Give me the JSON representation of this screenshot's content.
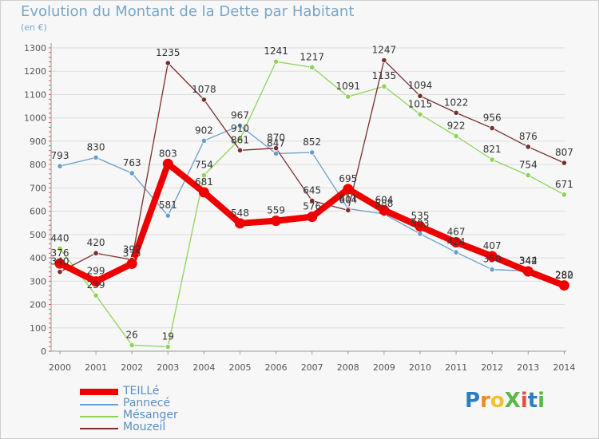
{
  "header": {
    "title": "Evolution du Montant de la Dette par Habitant",
    "unit": "(en €)"
  },
  "logo": {
    "text": "ProXiti",
    "letters": [
      "P",
      "r",
      "o",
      "X",
      "i",
      "t",
      "i"
    ],
    "colors": [
      "#2a7fc1",
      "#f08a1c",
      "#f2c12e",
      "#58b947",
      "#e94e3c",
      "#2a7fc1",
      "#58b947"
    ]
  },
  "chart_data": {
    "type": "line",
    "title": "Evolution du Montant de la Dette par Habitant",
    "ylabel": "(en €)",
    "xlabel": "",
    "x": [
      "2000",
      "2001",
      "2002",
      "2003",
      "2004",
      "2005",
      "2006",
      "2007",
      "2008",
      "2009",
      "2010",
      "2011",
      "2012",
      "2013",
      "2014"
    ],
    "ylim": [
      0,
      1300
    ],
    "yticks": [
      0,
      100,
      200,
      300,
      400,
      500,
      600,
      700,
      800,
      900,
      1000,
      1100,
      1200,
      1300
    ],
    "grid": "horizontal",
    "legend": "bottom-left",
    "series": [
      {
        "name": "Pannecé",
        "color": "#6a9ecb",
        "values": [
          793,
          830,
          763,
          581,
          902,
          967,
          847,
          852,
          611,
          588,
          503,
          424,
          350,
          344,
          280
        ]
      },
      {
        "name": "Mésanger",
        "color": "#8fd45a",
        "values": [
          440,
          239,
          26,
          19,
          754,
          910,
          1241,
          1217,
          1091,
          1135,
          1015,
          922,
          821,
          754,
          671
        ]
      },
      {
        "name": "Mouzeil",
        "color": "#7a2e2e",
        "values": [
          340,
          420,
          392,
          1235,
          1078,
          861,
          870,
          645,
          604,
          1247,
          1094,
          1022,
          956,
          876,
          807
        ]
      },
      {
        "name": "TEILLé",
        "color": "#ee0000",
        "values": [
          376,
          299,
          375,
          803,
          681,
          548,
          559,
          576,
          695,
          604,
          535,
          467,
          407,
          342,
          282
        ]
      }
    ]
  }
}
